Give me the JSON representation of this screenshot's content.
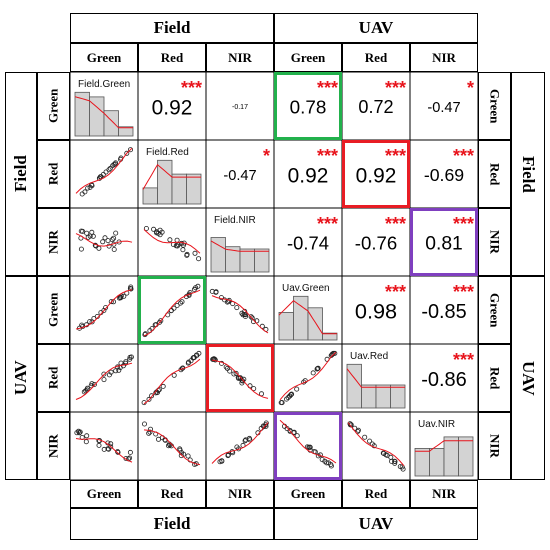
{
  "headers": {
    "top_groups": [
      "Field",
      "UAV"
    ],
    "bottom_groups": [
      "Field",
      "UAV"
    ],
    "top_columns": [
      "Green",
      "Red",
      "NIR",
      "Green",
      "Red",
      "NIR"
    ],
    "bottom_columns": [
      "Green",
      "Red",
      "NIR",
      "Green",
      "Red",
      "NIR"
    ],
    "left_groups": [
      "Field",
      "UAV"
    ],
    "right_groups": [
      "Field",
      "UAV"
    ],
    "left_rows": [
      "Green",
      "Red",
      "NIR",
      "Green",
      "Red",
      "NIR"
    ],
    "right_rows": [
      "Green",
      "Red",
      "NIR",
      "Green",
      "Red",
      "NIR"
    ]
  },
  "colors": {
    "correlation_text": "#000000",
    "significance_stars": "#e8141c",
    "smooth_line": "#e8141c",
    "histogram_fill": "#d3d3d3",
    "highlight_green": "#22b14c",
    "highlight_red": "#e81c24",
    "highlight_purple": "#7f3fbf"
  },
  "chart_data": {
    "type": "scatter",
    "variables": [
      "Field.Green",
      "Field.Red",
      "Field.NIR",
      "Uav.Green",
      "Uav.Red",
      "Uav.NIR"
    ],
    "diagonal_labels": [
      "Field.Green",
      "Field.Red",
      "Field.NIR",
      "Uav.Green",
      "Uav.Red",
      "Uav.NIR"
    ],
    "correlations": [
      {
        "row": 0,
        "col": 1,
        "value": "0.92",
        "stars": "***"
      },
      {
        "row": 0,
        "col": 2,
        "value": "-0.17",
        "stars": ""
      },
      {
        "row": 0,
        "col": 3,
        "value": "0.78",
        "stars": "***"
      },
      {
        "row": 0,
        "col": 4,
        "value": "0.72",
        "stars": "***"
      },
      {
        "row": 0,
        "col": 5,
        "value": "-0.47",
        "stars": "*"
      },
      {
        "row": 1,
        "col": 2,
        "value": "-0.47",
        "stars": "*"
      },
      {
        "row": 1,
        "col": 3,
        "value": "0.92",
        "stars": "***"
      },
      {
        "row": 1,
        "col": 4,
        "value": "0.92",
        "stars": "***"
      },
      {
        "row": 1,
        "col": 5,
        "value": "-0.69",
        "stars": "***"
      },
      {
        "row": 2,
        "col": 3,
        "value": "-0.74",
        "stars": "***"
      },
      {
        "row": 2,
        "col": 4,
        "value": "-0.76",
        "stars": "***"
      },
      {
        "row": 2,
        "col": 5,
        "value": "0.81",
        "stars": "***"
      },
      {
        "row": 3,
        "col": 4,
        "value": "0.98",
        "stars": "***"
      },
      {
        "row": 3,
        "col": 5,
        "value": "-0.85",
        "stars": "***"
      },
      {
        "row": 4,
        "col": 5,
        "value": "-0.86",
        "stars": "***"
      }
    ],
    "histograms": [
      [
        0.95,
        0.85,
        0.55,
        0.2
      ],
      [
        0.35,
        0.95,
        0.65,
        0.65
      ],
      [
        0.75,
        0.55,
        0.5,
        0.5
      ],
      [
        0.6,
        0.95,
        0.7,
        0.15
      ],
      [
        0.95,
        0.5,
        0.5,
        0.5
      ],
      [
        0.6,
        0.6,
        0.85,
        0.85
      ]
    ],
    "highlights": [
      {
        "row": 0,
        "col": 3,
        "color": "green"
      },
      {
        "row": 1,
        "col": 4,
        "color": "red"
      },
      {
        "row": 2,
        "col": 5,
        "color": "purple"
      },
      {
        "row": 3,
        "col": 1,
        "color": "green"
      },
      {
        "row": 4,
        "col": 2,
        "color": "red"
      },
      {
        "row": 5,
        "col": 3,
        "color": "purple"
      }
    ]
  }
}
